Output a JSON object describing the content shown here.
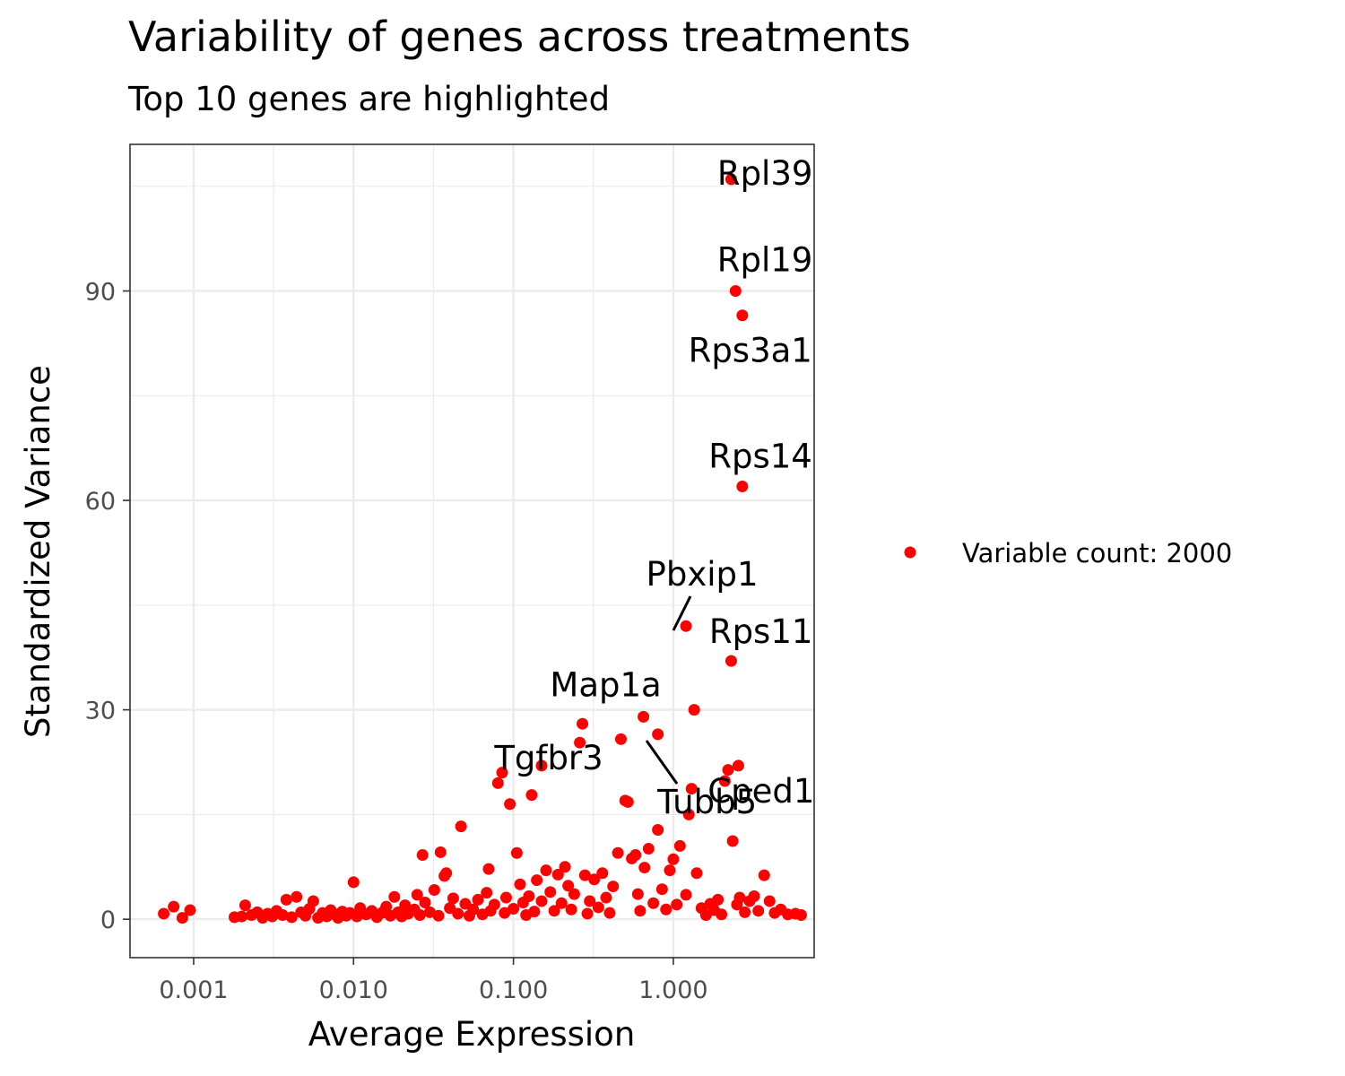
{
  "chart_data": {
    "type": "scatter",
    "title": "Variability of genes across treatments",
    "subtitle": "Top 10 genes are highlighted",
    "xlabel": "Average Expression",
    "ylabel": "Standardized Variance",
    "x_scale": "log10",
    "xlim": [
      0.0004,
      7.6
    ],
    "ylim": [
      -5.5,
      111
    ],
    "x_ticks": [
      0.001,
      0.01,
      0.1,
      1
    ],
    "x_tick_labels": [
      "0.001",
      "0.010",
      "0.100",
      "1.000"
    ],
    "y_ticks": [
      0,
      30,
      60,
      90
    ],
    "y_tick_labels": [
      "0",
      "30",
      "60",
      "90"
    ],
    "grid": true,
    "legend_position": "right",
    "legend_label": "Variable count: 2000",
    "point_color": "#ff0000",
    "highlighted": [
      {
        "name": "Rpl39",
        "x": 2.3,
        "y": 106
      },
      {
        "name": "Rpl19",
        "x": 2.45,
        "y": 90
      },
      {
        "name": "Rps3a1",
        "x": 2.7,
        "y": 86.5
      },
      {
        "name": "Rps14",
        "x": 2.7,
        "y": 62
      },
      {
        "name": "Pbxip1",
        "x": 1.2,
        "y": 42
      },
      {
        "name": "Rps11",
        "x": 2.3,
        "y": 37
      },
      {
        "name": "Map1a",
        "x": 0.65,
        "y": 29
      },
      {
        "name": "Cped1",
        "x": 2.55,
        "y": 22
      },
      {
        "name": "Tgfbr3",
        "x": 0.15,
        "y": 22
      },
      {
        "name": "Tubb5",
        "x": 0.8,
        "y": 26.5
      }
    ],
    "points": [
      [
        0.00065,
        0.8
      ],
      [
        0.00075,
        1.8
      ],
      [
        0.00085,
        0.2
      ],
      [
        0.00095,
        1.3
      ],
      [
        0.0018,
        0.3
      ],
      [
        0.002,
        0.4
      ],
      [
        0.0021,
        2.0
      ],
      [
        0.0023,
        0.6
      ],
      [
        0.0025,
        1.0
      ],
      [
        0.0027,
        0.2
      ],
      [
        0.0029,
        0.8
      ],
      [
        0.0031,
        0.4
      ],
      [
        0.0033,
        1.2
      ],
      [
        0.0036,
        0.6
      ],
      [
        0.0038,
        2.8
      ],
      [
        0.0041,
        0.3
      ],
      [
        0.0044,
        3.2
      ],
      [
        0.0047,
        1.0
      ],
      [
        0.005,
        0.5
      ],
      [
        0.0053,
        1.5
      ],
      [
        0.0056,
        2.6
      ],
      [
        0.006,
        0.2
      ],
      [
        0.0064,
        0.9
      ],
      [
        0.0068,
        0.4
      ],
      [
        0.0072,
        1.3
      ],
      [
        0.0076,
        0.7
      ],
      [
        0.008,
        0.2
      ],
      [
        0.0085,
        1.1
      ],
      [
        0.009,
        0.5
      ],
      [
        0.0095,
        0.9
      ],
      [
        0.01,
        5.3
      ],
      [
        0.0105,
        0.4
      ],
      [
        0.011,
        1.6
      ],
      [
        0.012,
        0.7
      ],
      [
        0.013,
        1.2
      ],
      [
        0.014,
        0.3
      ],
      [
        0.015,
        0.9
      ],
      [
        0.016,
        1.8
      ],
      [
        0.017,
        0.5
      ],
      [
        0.018,
        3.2
      ],
      [
        0.019,
        1.0
      ],
      [
        0.02,
        0.4
      ],
      [
        0.021,
        2.0
      ],
      [
        0.022,
        0.8
      ],
      [
        0.024,
        1.4
      ],
      [
        0.025,
        3.5
      ],
      [
        0.026,
        0.6
      ],
      [
        0.027,
        9.2
      ],
      [
        0.028,
        2.4
      ],
      [
        0.03,
        1.0
      ],
      [
        0.032,
        4.2
      ],
      [
        0.034,
        0.5
      ],
      [
        0.035,
        9.6
      ],
      [
        0.037,
        6.2
      ],
      [
        0.038,
        6.6
      ],
      [
        0.04,
        1.6
      ],
      [
        0.042,
        3.0
      ],
      [
        0.045,
        0.8
      ],
      [
        0.047,
        13.3
      ],
      [
        0.05,
        2.2
      ],
      [
        0.053,
        0.5
      ],
      [
        0.056,
        1.4
      ],
      [
        0.06,
        2.8
      ],
      [
        0.064,
        0.7
      ],
      [
        0.068,
        3.8
      ],
      [
        0.07,
        7.2
      ],
      [
        0.072,
        1.2
      ],
      [
        0.076,
        2.1
      ],
      [
        0.08,
        19.5
      ],
      [
        0.085,
        21.0
      ],
      [
        0.088,
        0.9
      ],
      [
        0.09,
        3.1
      ],
      [
        0.095,
        16.5
      ],
      [
        0.1,
        1.5
      ],
      [
        0.105,
        9.5
      ],
      [
        0.11,
        5.0
      ],
      [
        0.115,
        2.4
      ],
      [
        0.12,
        0.6
      ],
      [
        0.125,
        3.3
      ],
      [
        0.13,
        17.8
      ],
      [
        0.135,
        1.1
      ],
      [
        0.14,
        5.6
      ],
      [
        0.15,
        2.6
      ],
      [
        0.16,
        7.0
      ],
      [
        0.17,
        3.9
      ],
      [
        0.18,
        1.2
      ],
      [
        0.19,
        6.4
      ],
      [
        0.2,
        2.3
      ],
      [
        0.21,
        7.5
      ],
      [
        0.22,
        4.8
      ],
      [
        0.23,
        1.4
      ],
      [
        0.24,
        3.6
      ],
      [
        0.26,
        25.3
      ],
      [
        0.27,
        28.0
      ],
      [
        0.28,
        6.3
      ],
      [
        0.29,
        0.8
      ],
      [
        0.3,
        2.6
      ],
      [
        0.32,
        5.7
      ],
      [
        0.34,
        1.7
      ],
      [
        0.36,
        6.6
      ],
      [
        0.38,
        3.1
      ],
      [
        0.4,
        0.9
      ],
      [
        0.42,
        4.7
      ],
      [
        0.45,
        9.5
      ],
      [
        0.47,
        25.8
      ],
      [
        0.5,
        17.0
      ],
      [
        0.52,
        16.8
      ],
      [
        0.55,
        8.7
      ],
      [
        0.58,
        9.2
      ],
      [
        0.6,
        3.6
      ],
      [
        0.62,
        1.2
      ],
      [
        0.66,
        7.4
      ],
      [
        0.7,
        10.1
      ],
      [
        0.75,
        2.3
      ],
      [
        0.8,
        12.8
      ],
      [
        0.85,
        4.3
      ],
      [
        0.9,
        1.4
      ],
      [
        0.95,
        7.0
      ],
      [
        1.0,
        8.6
      ],
      [
        1.05,
        2.1
      ],
      [
        1.1,
        10.5
      ],
      [
        1.2,
        3.5
      ],
      [
        1.25,
        15.0
      ],
      [
        1.3,
        18.7
      ],
      [
        1.35,
        30.0
      ],
      [
        1.4,
        6.6
      ],
      [
        1.5,
        1.6
      ],
      [
        1.6,
        0.6
      ],
      [
        1.7,
        2.2
      ],
      [
        1.8,
        1.3
      ],
      [
        1.9,
        2.8
      ],
      [
        2.0,
        0.7
      ],
      [
        2.1,
        19.8
      ],
      [
        2.2,
        21.4
      ],
      [
        2.35,
        11.2
      ],
      [
        2.5,
        2.1
      ],
      [
        2.6,
        3.1
      ],
      [
        2.8,
        1.0
      ],
      [
        3.0,
        2.6
      ],
      [
        3.2,
        3.3
      ],
      [
        3.4,
        1.2
      ],
      [
        3.7,
        6.3
      ],
      [
        4.0,
        2.6
      ],
      [
        4.3,
        0.9
      ],
      [
        4.7,
        1.4
      ],
      [
        5.2,
        0.7
      ],
      [
        5.8,
        0.8
      ],
      [
        6.3,
        0.6
      ]
    ]
  }
}
